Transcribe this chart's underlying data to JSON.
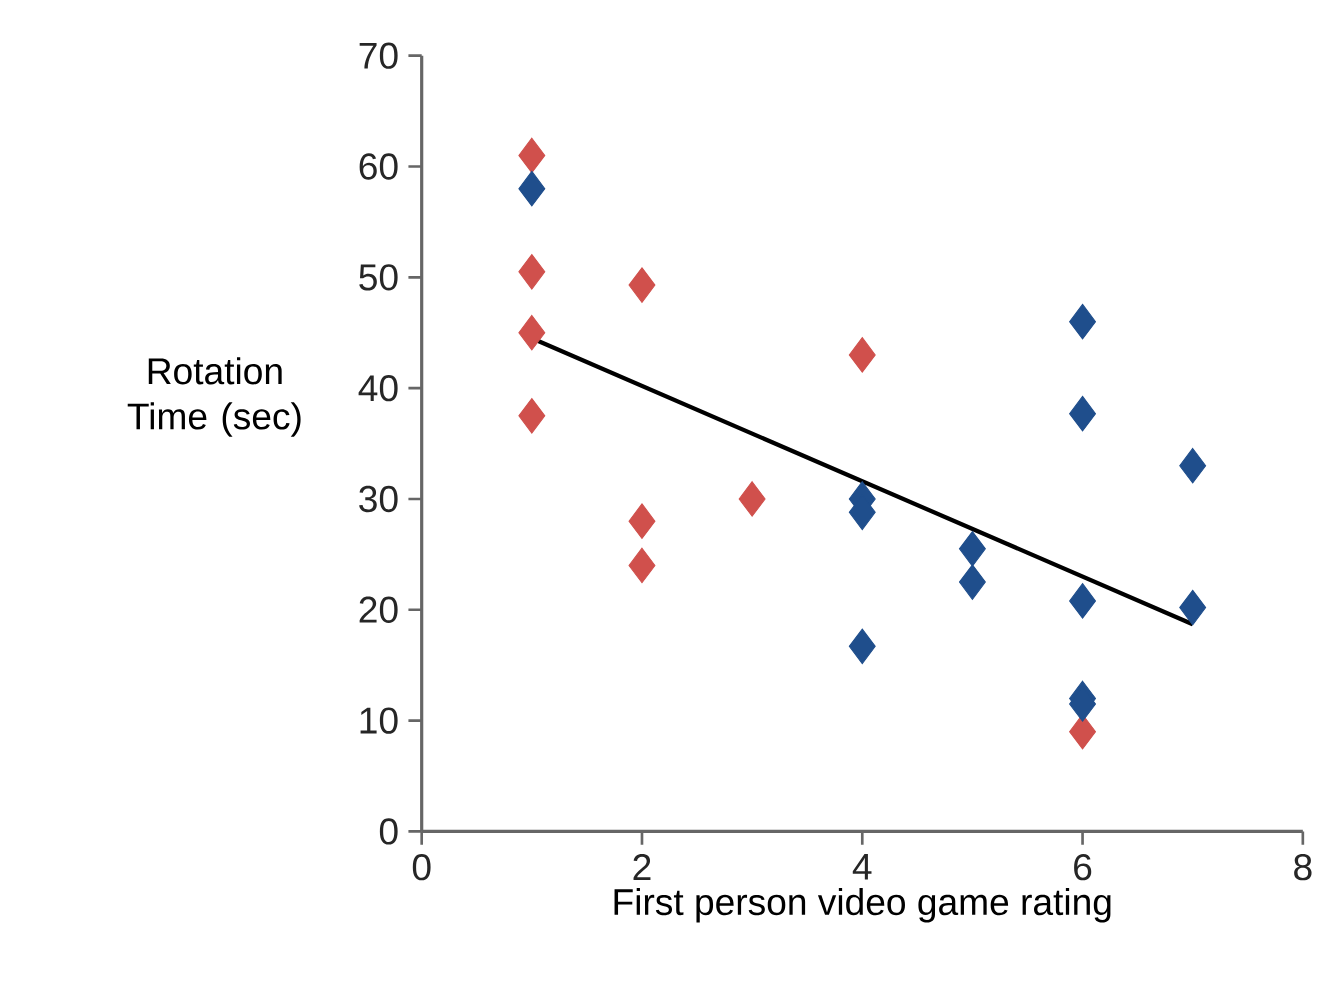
{
  "chart_data": {
    "type": "scatter",
    "xlabel": "First person video game rating",
    "ylabel": "Rotation Time (sec)",
    "xlim": [
      0,
      8
    ],
    "ylim": [
      0,
      70
    ],
    "xticks": [
      0,
      2,
      4,
      6,
      8
    ],
    "yticks": [
      0,
      10,
      20,
      30,
      40,
      50,
      60,
      70
    ],
    "grid": false,
    "marker": "diamond",
    "series": [
      {
        "color": "#d0504c",
        "x": [
          1,
          1,
          1,
          1,
          2,
          2,
          2,
          3,
          4,
          6
        ],
        "values": [
          61,
          50.5,
          45,
          37.5,
          49.3,
          28,
          24,
          30,
          43,
          9
        ]
      },
      {
        "color": "#1f4e8c",
        "x": [
          1,
          4,
          4,
          4,
          5,
          5,
          6,
          6,
          6,
          6,
          6,
          7,
          7
        ],
        "values": [
          58,
          30,
          28.8,
          16.7,
          25.5,
          22.5,
          46,
          37.7,
          20.8,
          12,
          11.5,
          33,
          20.2
        ]
      },
      {
        "type": "line",
        "color": "#000000",
        "marker": "none",
        "line_style": "solid",
        "x": [
          1,
          7
        ],
        "values": [
          44.5,
          18.7
        ]
      }
    ]
  }
}
